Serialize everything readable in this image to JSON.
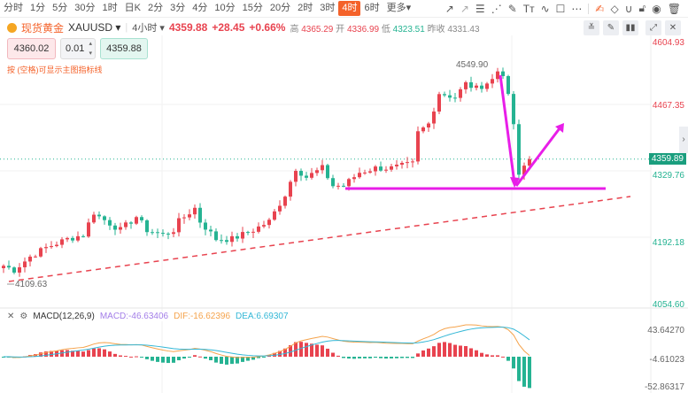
{
  "periods": [
    "分时",
    "1分",
    "5分",
    "30分",
    "1时",
    "日K",
    "2分",
    "3分",
    "4分",
    "10分",
    "15分",
    "20分",
    "2时",
    "3时",
    "4时",
    "6时",
    "更多▾"
  ],
  "active_period": "4时",
  "tools": [
    "trend-line-icon",
    "ray-icon",
    "fib-icon",
    "fan-icon",
    "pen-icon",
    "text-icon",
    "wave-icon",
    "rect-icon",
    "more-icon",
    "edit-icon",
    "eraser-icon",
    "magnet-icon",
    "lock-icon",
    "eye-icon",
    "trash-icon"
  ],
  "header": {
    "name": "现货黄金",
    "symbol": "XAUUSD ▾",
    "interval": "4小时 ▾",
    "price": "4359.88",
    "change": "+28.45",
    "change_pct": "+0.66%",
    "high_label": "高",
    "high": "4365.29",
    "open_label": "开",
    "open": "4336.99",
    "low_label": "低",
    "low": "4323.51",
    "prev_label": "昨收",
    "prev": "4331.43"
  },
  "trade": {
    "sell": "4360.02",
    "qty": "0.01",
    "buy": "4359.88",
    "hint": "按 (空格)可显示主图指标线"
  },
  "axis": {
    "price_labels": [
      "4604.93",
      "4467.35",
      "4329.76",
      "4192.18",
      "4054.60"
    ],
    "current": "4359.89",
    "macd_labels": [
      "43.64270",
      "-4.61023",
      "-52.86317"
    ]
  },
  "chart": {
    "high_label": "4549.90",
    "low_label": "4109.63",
    "price_max": 4604.93,
    "price_min": 4054.6,
    "waypoints": [
      [
        0,
        4136
      ],
      [
        2,
        4127
      ],
      [
        5,
        4155
      ],
      [
        8,
        4174
      ],
      [
        12,
        4192
      ],
      [
        15,
        4201
      ],
      [
        17,
        4248
      ],
      [
        18,
        4239
      ],
      [
        22,
        4211
      ],
      [
        25,
        4239
      ],
      [
        27,
        4211
      ],
      [
        30,
        4201
      ],
      [
        32,
        4211
      ],
      [
        33,
        4229
      ],
      [
        36,
        4257
      ],
      [
        37,
        4229
      ],
      [
        40,
        4192
      ],
      [
        43,
        4192
      ],
      [
        47,
        4211
      ],
      [
        50,
        4229
      ],
      [
        52,
        4267
      ],
      [
        53,
        4285
      ],
      [
        55,
        4341
      ],
      [
        57,
        4322
      ],
      [
        60,
        4341
      ],
      [
        62,
        4304
      ],
      [
        64,
        4304
      ],
      [
        67,
        4332
      ],
      [
        70,
        4341
      ],
      [
        73,
        4341
      ],
      [
        77,
        4350
      ],
      [
        78,
        4415
      ],
      [
        80,
        4434
      ],
      [
        82,
        4499
      ],
      [
        85,
        4490
      ],
      [
        87,
        4518
      ],
      [
        89,
        4508
      ],
      [
        92,
        4527
      ],
      [
        93,
        4545
      ],
      [
        94,
        4540
      ],
      [
        95,
        4490
      ],
      [
        96,
        4434
      ],
      [
        97,
        4322
      ],
      [
        98,
        4345
      ],
      [
        99,
        4360
      ]
    ]
  },
  "macd": {
    "label": "MACD(12,26,9)",
    "macd": "MACD:-46.63406",
    "dif": "DIF:-16.62396",
    "dea": "DEA:6.69307"
  },
  "colors": {
    "up": "#e8434f",
    "down": "#25b392",
    "accent": "#f4622a",
    "magenta": "#e81ee8"
  }
}
